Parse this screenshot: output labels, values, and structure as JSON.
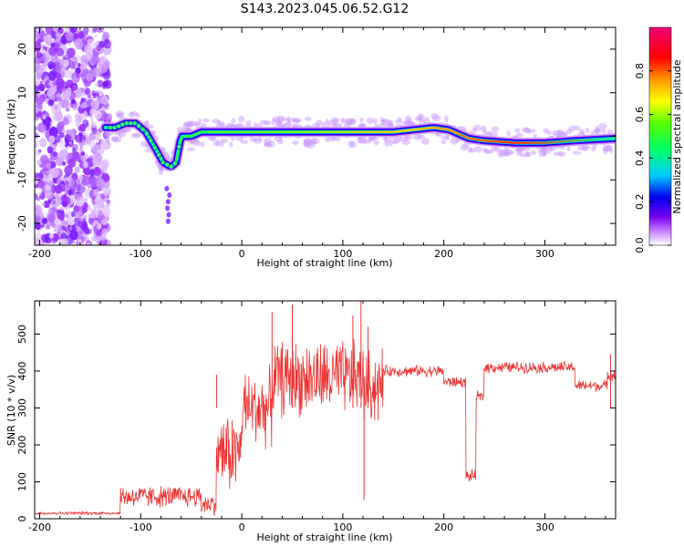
{
  "title": "S143.2023.045.06.52.G12",
  "colors": {
    "snr_line": "#ee3333",
    "axis": "#000000",
    "background": "#ffffff"
  },
  "chart_data": [
    {
      "type": "heatmap",
      "xlabel": "Height of straight line (km)",
      "ylabel": "Frequency (Hz)",
      "xlim": [
        -205,
        370
      ],
      "ylim": [
        -25,
        25
      ],
      "xticks": [
        -200,
        -100,
        0,
        100,
        200,
        300
      ],
      "yticks": [
        -20,
        -10,
        0,
        10,
        20
      ],
      "colorbar": {
        "label": "Normalized spectral amplitude",
        "range": [
          0,
          1
        ],
        "ticks": [
          "0.0",
          "0.2",
          "0.4",
          "0.6",
          "0.8"
        ],
        "ticks_values": [
          0.0,
          0.2,
          0.4,
          0.6,
          0.8
        ]
      },
      "ridge": {
        "x": [
          -135,
          -125,
          -115,
          -105,
          -95,
          -85,
          -78,
          -70,
          -65,
          -60,
          -50,
          -40,
          -20,
          0,
          50,
          100,
          150,
          170,
          190,
          205,
          215,
          225,
          240,
          270,
          300,
          330,
          370
        ],
        "y": [
          2,
          2,
          3,
          3,
          1,
          -3,
          -6,
          -7,
          -6,
          0,
          0,
          1,
          1,
          1,
          1,
          1,
          1,
          1.5,
          2,
          1.5,
          0.5,
          -0.5,
          -1,
          -1.5,
          -1.5,
          -1,
          -0.5
        ]
      },
      "noise_region_x": [
        -205,
        -140
      ],
      "grid": false
    },
    {
      "type": "line",
      "xlabel": "Height of straight line (km)",
      "ylabel": "SNR (10 * v/v)",
      "xlim": [
        -205,
        370
      ],
      "ylim": [
        0,
        590
      ],
      "xticks": [
        -200,
        -100,
        0,
        100,
        200,
        300
      ],
      "yticks": [
        0,
        100,
        200,
        300,
        400,
        500
      ],
      "series": [
        {
          "segments": [
            {
              "x": [
                -205,
                -120
              ],
              "level": 15
            },
            {
              "x": [
                -120,
                -40
              ],
              "level": 60
            },
            {
              "x": [
                -40,
                -25
              ],
              "level": 40
            },
            {
              "x": [
                -25,
                0
              ],
              "level": 180
            },
            {
              "x": [
                0,
                30
              ],
              "level": 300
            },
            {
              "x": [
                30,
                90
              ],
              "level": 380
            },
            {
              "x": [
                90,
                120
              ],
              "level": 380
            },
            {
              "x": [
                120,
                140
              ],
              "level": 360
            },
            {
              "x": [
                140,
                200
              ],
              "level": 400
            },
            {
              "x": [
                200,
                222
              ],
              "level": 370
            },
            {
              "x": [
                222,
                232
              ],
              "level": 115
            },
            {
              "x": [
                232,
                240
              ],
              "level": 330
            },
            {
              "x": [
                240,
                330
              ],
              "level": 410
            },
            {
              "x": [
                330,
                362
              ],
              "level": 360
            },
            {
              "x": [
                362,
                370
              ],
              "level": 390
            }
          ],
          "spikes": [
            {
              "x": -25,
              "y": 390
            },
            {
              "x": 30,
              "y": 560
            },
            {
              "x": 50,
              "y": 580
            },
            {
              "x": 110,
              "y": 550
            },
            {
              "x": 118,
              "y": 590
            },
            {
              "x": 121,
              "y": 50
            },
            {
              "x": 125,
              "y": 520
            },
            {
              "x": 365,
              "y": 445
            }
          ]
        }
      ],
      "grid": false
    }
  ]
}
